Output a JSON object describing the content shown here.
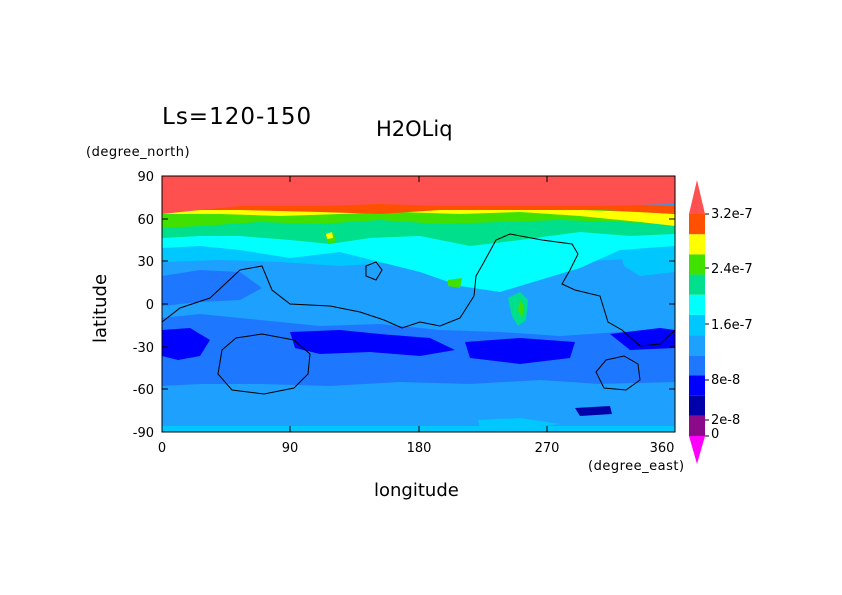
{
  "chart_data": {
    "type": "heatmap",
    "title": "Ls=120-150",
    "variable": "H2OLiq",
    "xlabel": "longitude",
    "ylabel": "latitude",
    "x_unit": "(degree_east)",
    "y_unit": "(degree_north)",
    "xlim": [
      0,
      360
    ],
    "ylim": [
      -90,
      90
    ],
    "x_ticks": [
      "0",
      "90",
      "180",
      "270",
      "360"
    ],
    "y_ticks": [
      "90",
      "60",
      "30",
      "0",
      "-30",
      "-60",
      "-90"
    ],
    "colorbar_labels": [
      "3.2e-7",
      "2.4e-7",
      "1.6e-7",
      "8e-8",
      "2e-8",
      "0"
    ],
    "colorbar_levels": [
      {
        "value": 0,
        "color": "#ff00ff"
      },
      {
        "value": 1e-08,
        "color": "#8a0a8a"
      },
      {
        "value": 2e-08,
        "color": "#0000aa"
      },
      {
        "value": 4e-08,
        "color": "#0000ff"
      },
      {
        "value": 6e-08,
        "color": "#1e78ff"
      },
      {
        "value": 8e-08,
        "color": "#1ea0ff"
      },
      {
        "value": 1.2e-07,
        "color": "#00c8ff"
      },
      {
        "value": 1.6e-07,
        "color": "#00ffff"
      },
      {
        "value": 2e-07,
        "color": "#00e08c"
      },
      {
        "value": 2.4e-07,
        "color": "#40e000"
      },
      {
        "value": 2.8e-07,
        "color": "#ffff00"
      },
      {
        "value": 3.2e-07,
        "color": "#ff5000"
      },
      {
        "value": 3.6e-07,
        "color": "#ff5050"
      }
    ],
    "latitude_bands": [
      {
        "lat_range": [
          78,
          90
        ],
        "value_range": ">3.6e-7"
      },
      {
        "lat_range": [
          68,
          78
        ],
        "value_range": "2.8e-7 - 3.6e-7"
      },
      {
        "lat_range": [
          45,
          68
        ],
        "value_range": "1.6e-7 - 2.8e-7"
      },
      {
        "lat_range": [
          20,
          45
        ],
        "value_range": "1.2e-7 - 2.0e-7"
      },
      {
        "lat_range": [
          -10,
          20
        ],
        "value_range": "8e-8 - 1.2e-7"
      },
      {
        "lat_range": [
          -40,
          -10
        ],
        "value_range": "4e-8 - 8e-8"
      },
      {
        "lat_range": [
          -85,
          -40
        ],
        "value_range": "8e-8 - 1.2e-7"
      }
    ]
  }
}
